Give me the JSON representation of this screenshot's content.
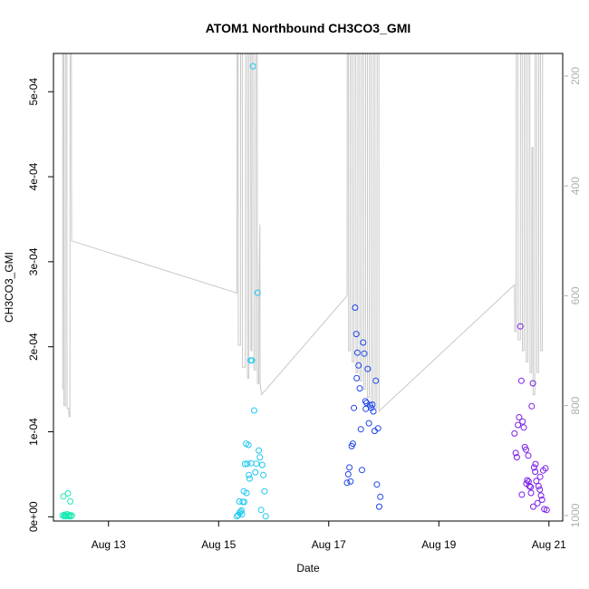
{
  "chart_data": {
    "type": "scatter",
    "title": "ATOM1 Northbound CH3CO3_GMI",
    "xlabel": "Date",
    "ylabel": "CH3CO3_GMI",
    "xlim": [
      "2016-08-12T00:00",
      "2016-08-21T06:00"
    ],
    "ylim": [
      -5e-06,
      0.000545
    ],
    "x_ticks": [
      {
        "value": "2016-08-13",
        "label": "Aug 13"
      },
      {
        "value": "2016-08-15",
        "label": "Aug 15"
      },
      {
        "value": "2016-08-17",
        "label": "Aug 17"
      },
      {
        "value": "2016-08-19",
        "label": "Aug 19"
      },
      {
        "value": "2016-08-21",
        "label": "Aug 21"
      }
    ],
    "y_ticks": [
      {
        "value": 0,
        "label": "0e+00"
      },
      {
        "value": 0.0001,
        "label": "1e-04"
      },
      {
        "value": 0.0002,
        "label": "2e-04"
      },
      {
        "value": 0.0003,
        "label": "3e-04"
      },
      {
        "value": 0.0004,
        "label": "4e-04"
      },
      {
        "value": 0.0005,
        "label": "5e-04"
      }
    ],
    "y2_reversed": true,
    "y2lim": [
      1010,
      159
    ],
    "y2_ticks": [
      {
        "value": 200,
        "label": "200"
      },
      {
        "value": 400,
        "label": "400"
      },
      {
        "value": 600,
        "label": "600"
      },
      {
        "value": 800,
        "label": "800"
      },
      {
        "value": 1000,
        "label": "1000"
      }
    ],
    "grid": false,
    "colors": {
      "pressure_line": "#c8c8c8",
      "axis": "#000000",
      "right_axis": "#b0b0b0"
    },
    "series": [
      {
        "color": "#1de9b6",
        "points": [
          [
            "2016-08-12T04:00",
            1.5e-06
          ],
          [
            "2016-08-12T04:20",
            2.4e-05
          ],
          [
            "2016-08-12T04:40",
            5e-07
          ],
          [
            "2016-08-12T05:00",
            2e-06
          ],
          [
            "2016-08-12T05:20",
            1e-06
          ],
          [
            "2016-08-12T05:40",
            5e-07
          ],
          [
            "2016-08-12T06:00",
            3e-06
          ],
          [
            "2016-08-12T06:20",
            2.75e-05
          ],
          [
            "2016-08-12T06:40",
            1e-06
          ],
          [
            "2016-08-12T07:00",
            2e-06
          ],
          [
            "2016-08-12T07:20",
            1.8e-05
          ],
          [
            "2016-08-12T07:40",
            5e-07
          ],
          [
            "2016-08-12T08:00",
            1.5e-06
          ],
          [
            "2016-08-12T04:50",
            2.5e-06
          ],
          [
            "2016-08-12T06:50",
            5e-07
          ]
        ]
      },
      {
        "color": "#1ec8f0",
        "points": [
          [
            "2016-08-15T08:00",
            5e-07
          ],
          [
            "2016-08-15T08:30",
            2e-06
          ],
          [
            "2016-08-15T09:00",
            1.8e-05
          ],
          [
            "2016-08-15T09:30",
            6e-06
          ],
          [
            "2016-08-15T10:00",
            7.5e-06
          ],
          [
            "2016-08-15T10:30",
            1.75e-05
          ],
          [
            "2016-08-15T11:00",
            3e-05
          ],
          [
            "2016-08-15T11:30",
            6.2e-05
          ],
          [
            "2016-08-15T12:00",
            8.6e-05
          ],
          [
            "2016-08-15T12:30",
            6.25e-05
          ],
          [
            "2016-08-15T13:00",
            8.45e-05
          ],
          [
            "2016-08-15T13:30",
            4.5e-05
          ],
          [
            "2016-08-15T14:00",
            0.000184
          ],
          [
            "2016-08-15T14:30",
            0.000184
          ],
          [
            "2016-08-15T15:00",
            0.00053
          ],
          [
            "2016-08-15T15:30",
            0.000125
          ],
          [
            "2016-08-15T16:00",
            5.25e-05
          ],
          [
            "2016-08-15T16:30",
            6.25e-05
          ],
          [
            "2016-08-15T17:00",
            0.0002635
          ],
          [
            "2016-08-15T17:30",
            7.8e-05
          ],
          [
            "2016-08-15T18:00",
            7e-05
          ],
          [
            "2016-08-15T18:30",
            8e-06
          ],
          [
            "2016-08-15T19:00",
            6.1e-05
          ],
          [
            "2016-08-15T19:30",
            4.9e-05
          ],
          [
            "2016-08-15T20:00",
            3e-05
          ],
          [
            "2016-08-15T20:30",
            5e-07
          ],
          [
            "2016-08-15T09:10",
            4.5e-06
          ],
          [
            "2016-08-15T10:10",
            3e-06
          ],
          [
            "2016-08-15T12:10",
            2.8e-05
          ],
          [
            "2016-08-15T13:10",
            4.9e-05
          ],
          [
            "2016-08-15T14:10",
            6.3e-05
          ],
          [
            "2016-08-15T11:10",
            1.75e-05
          ]
        ]
      },
      {
        "color": "#2046e8",
        "points": [
          [
            "2016-08-17T08:00",
            4e-05
          ],
          [
            "2016-08-17T08:30",
            5e-05
          ],
          [
            "2016-08-17T09:00",
            5.8e-05
          ],
          [
            "2016-08-17T09:30",
            4.15e-05
          ],
          [
            "2016-08-17T10:00",
            8.3e-05
          ],
          [
            "2016-08-17T10:30",
            8.6e-05
          ],
          [
            "2016-08-17T11:00",
            0.000128
          ],
          [
            "2016-08-17T11:30",
            0.000246
          ],
          [
            "2016-08-17T12:00",
            0.000215
          ],
          [
            "2016-08-17T12:30",
            0.000193
          ],
          [
            "2016-08-17T13:00",
            0.000178
          ],
          [
            "2016-08-17T13:30",
            0.000151
          ],
          [
            "2016-08-17T14:00",
            0.000103
          ],
          [
            "2016-08-17T14:30",
            5.5e-05
          ],
          [
            "2016-08-17T15:00",
            0.000205
          ],
          [
            "2016-08-17T15:30",
            0.000192
          ],
          [
            "2016-08-17T16:00",
            0.000136
          ],
          [
            "2016-08-17T16:30",
            0.000134
          ],
          [
            "2016-08-17T17:00",
            0.000174
          ],
          [
            "2016-08-17T17:30",
            0.00011
          ],
          [
            "2016-08-17T18:00",
            0.000131
          ],
          [
            "2016-08-17T18:30",
            0.000128
          ],
          [
            "2016-08-17T19:00",
            0.000132
          ],
          [
            "2016-08-17T19:30",
            0.000124
          ],
          [
            "2016-08-17T20:00",
            0.000101
          ],
          [
            "2016-08-17T20:30",
            0.00016
          ],
          [
            "2016-08-17T21:00",
            3.8e-05
          ],
          [
            "2016-08-17T21:30",
            0.000104
          ],
          [
            "2016-08-17T22:00",
            1.2e-05
          ],
          [
            "2016-08-17T22:30",
            2.35e-05
          ],
          [
            "2016-08-17T12:10",
            0.000163
          ],
          [
            "2016-08-17T16:10",
            0.000127
          ]
        ]
      },
      {
        "color": "#7a1ee8",
        "points": [
          [
            "2016-08-20T09:00",
            9.8e-05
          ],
          [
            "2016-08-20T09:30",
            7.5e-05
          ],
          [
            "2016-08-20T10:00",
            7e-05
          ],
          [
            "2016-08-20T10:30",
            0.000108
          ],
          [
            "2016-08-20T11:00",
            0.000117
          ],
          [
            "2016-08-20T11:30",
            0.000224
          ],
          [
            "2016-08-20T12:00",
            0.00016
          ],
          [
            "2016-08-20T12:30",
            0.000112
          ],
          [
            "2016-08-20T13:00",
            0.000105
          ],
          [
            "2016-08-20T13:30",
            8.2e-05
          ],
          [
            "2016-08-20T14:00",
            7.9e-05
          ],
          [
            "2016-08-20T14:30",
            4.3e-05
          ],
          [
            "2016-08-20T15:00",
            7.2e-05
          ],
          [
            "2016-08-20T15:30",
            3.6e-05
          ],
          [
            "2016-08-20T16:00",
            3.5e-05
          ],
          [
            "2016-08-20T16:30",
            0.00013
          ],
          [
            "2016-08-20T17:00",
            0.000157
          ],
          [
            "2016-08-20T17:30",
            5.8e-05
          ],
          [
            "2016-08-20T18:00",
            5.3e-05
          ],
          [
            "2016-08-20T18:30",
            4.2e-05
          ],
          [
            "2016-08-20T19:00",
            1.6e-05
          ],
          [
            "2016-08-20T19:30",
            3.6e-05
          ],
          [
            "2016-08-20T20:00",
            3.2e-05
          ],
          [
            "2016-08-20T20:30",
            2.5e-05
          ],
          [
            "2016-08-20T21:00",
            2e-05
          ],
          [
            "2016-08-20T21:30",
            5.45e-05
          ],
          [
            "2016-08-20T22:00",
            9e-06
          ],
          [
            "2016-08-20T22:30",
            5.7e-05
          ],
          [
            "2016-08-20T23:00",
            8e-06
          ],
          [
            "2016-08-20T12:10",
            2.6e-05
          ],
          [
            "2016-08-20T14:10",
            3.9e-05
          ],
          [
            "2016-08-20T16:10",
            2.8e-05
          ],
          [
            "2016-08-20T18:10",
            6.2e-05
          ],
          [
            "2016-08-20T20:10",
            4.7e-05
          ],
          [
            "2016-08-20T15:10",
            4.15e-05
          ],
          [
            "2016-08-20T17:10",
            1.2e-05
          ]
        ]
      }
    ],
    "pressure_trace": [
      [
        "2016-08-12T04:00",
        770
      ],
      [
        "2016-08-12T04:05",
        159
      ],
      [
        "2016-08-12T04:30",
        159
      ],
      [
        "2016-08-12T04:35",
        800
      ],
      [
        "2016-08-12T05:10",
        800
      ],
      [
        "2016-08-12T05:15",
        159
      ],
      [
        "2016-08-12T05:50",
        159
      ],
      [
        "2016-08-12T05:55",
        805
      ],
      [
        "2016-08-12T06:40",
        805
      ],
      [
        "2016-08-12T06:45",
        820
      ],
      [
        "2016-08-12T07:10",
        820
      ],
      [
        "2016-08-12T07:15",
        159
      ],
      [
        "2016-08-12T07:50",
        159
      ],
      [
        "2016-08-12T07:55",
        500
      ],
      [
        "2016-08-15T08:00",
        595
      ],
      [
        "2016-08-15T08:05",
        159
      ],
      [
        "2016-08-15T08:30",
        159
      ],
      [
        "2016-08-15T08:35",
        690
      ],
      [
        "2016-08-15T09:30",
        690
      ],
      [
        "2016-08-15T09:35",
        159
      ],
      [
        "2016-08-15T10:20",
        159
      ],
      [
        "2016-08-15T10:25",
        730
      ],
      [
        "2016-08-15T11:40",
        730
      ],
      [
        "2016-08-15T11:45",
        159
      ],
      [
        "2016-08-15T12:30",
        159
      ],
      [
        "2016-08-15T12:35",
        750
      ],
      [
        "2016-08-15T13:10",
        750
      ],
      [
        "2016-08-15T13:15",
        159
      ],
      [
        "2016-08-15T14:00",
        159
      ],
      [
        "2016-08-15T14:05",
        700
      ],
      [
        "2016-08-15T14:30",
        700
      ],
      [
        "2016-08-15T14:35",
        159
      ],
      [
        "2016-08-15T15:20",
        159
      ],
      [
        "2016-08-15T15:25",
        735
      ],
      [
        "2016-08-15T16:10",
        735
      ],
      [
        "2016-08-15T16:15",
        159
      ],
      [
        "2016-08-15T16:50",
        159
      ],
      [
        "2016-08-15T16:55",
        760
      ],
      [
        "2016-08-15T17:30",
        760
      ],
      [
        "2016-08-15T17:35",
        595
      ],
      [
        "2016-08-15T18:00",
        470
      ],
      [
        "2016-08-15T18:05",
        760
      ],
      [
        "2016-08-15T18:45",
        780
      ],
      [
        "2016-08-17T08:00",
        600
      ],
      [
        "2016-08-17T08:05",
        159
      ],
      [
        "2016-08-17T08:35",
        159
      ],
      [
        "2016-08-17T08:40",
        700
      ],
      [
        "2016-08-17T09:20",
        700
      ],
      [
        "2016-08-17T09:25",
        159
      ],
      [
        "2016-08-17T10:10",
        159
      ],
      [
        "2016-08-17T10:15",
        720
      ],
      [
        "2016-08-17T11:00",
        720
      ],
      [
        "2016-08-17T11:05",
        159
      ],
      [
        "2016-08-17T11:50",
        159
      ],
      [
        "2016-08-17T11:55",
        740
      ],
      [
        "2016-08-17T12:40",
        740
      ],
      [
        "2016-08-17T12:45",
        159
      ],
      [
        "2016-08-17T13:30",
        159
      ],
      [
        "2016-08-17T13:35",
        755
      ],
      [
        "2016-08-17T14:20",
        755
      ],
      [
        "2016-08-17T14:25",
        159
      ],
      [
        "2016-08-17T15:10",
        159
      ],
      [
        "2016-08-17T15:15",
        770
      ],
      [
        "2016-08-17T16:00",
        770
      ],
      [
        "2016-08-17T16:05",
        159
      ],
      [
        "2016-08-17T16:50",
        159
      ],
      [
        "2016-08-17T16:55",
        785
      ],
      [
        "2016-08-17T17:40",
        785
      ],
      [
        "2016-08-17T17:45",
        159
      ],
      [
        "2016-08-17T18:30",
        159
      ],
      [
        "2016-08-17T18:35",
        795
      ],
      [
        "2016-08-17T19:20",
        795
      ],
      [
        "2016-08-17T19:25",
        159
      ],
      [
        "2016-08-17T20:10",
        159
      ],
      [
        "2016-08-17T20:15",
        805
      ],
      [
        "2016-08-17T21:00",
        805
      ],
      [
        "2016-08-17T21:05",
        159
      ],
      [
        "2016-08-17T21:50",
        159
      ],
      [
        "2016-08-17T21:55",
        810
      ],
      [
        "2016-08-20T09:00",
        580
      ],
      [
        "2016-08-20T09:05",
        665
      ],
      [
        "2016-08-20T09:40",
        665
      ],
      [
        "2016-08-20T09:45",
        159
      ],
      [
        "2016-08-20T10:30",
        159
      ],
      [
        "2016-08-20T10:35",
        680
      ],
      [
        "2016-08-20T11:30",
        680
      ],
      [
        "2016-08-20T11:35",
        159
      ],
      [
        "2016-08-20T12:20",
        159
      ],
      [
        "2016-08-20T12:25",
        700
      ],
      [
        "2016-08-20T13:10",
        700
      ],
      [
        "2016-08-20T13:15",
        159
      ],
      [
        "2016-08-20T14:00",
        159
      ],
      [
        "2016-08-20T14:05",
        720
      ],
      [
        "2016-08-20T14:50",
        720
      ],
      [
        "2016-08-20T14:55",
        159
      ],
      [
        "2016-08-20T15:40",
        159
      ],
      [
        "2016-08-20T15:45",
        740
      ],
      [
        "2016-08-20T16:30",
        740
      ],
      [
        "2016-08-20T16:35",
        330
      ],
      [
        "2016-08-20T17:00",
        330
      ],
      [
        "2016-08-20T17:05",
        780
      ],
      [
        "2016-08-20T17:50",
        780
      ],
      [
        "2016-08-20T17:55",
        159
      ],
      [
        "2016-08-20T18:40",
        159
      ],
      [
        "2016-08-20T18:45",
        740
      ],
      [
        "2016-08-20T19:30",
        740
      ],
      [
        "2016-08-20T19:35",
        159
      ],
      [
        "2016-08-20T20:20",
        159
      ],
      [
        "2016-08-20T20:25",
        700
      ],
      [
        "2016-08-20T21:10",
        700
      ],
      [
        "2016-08-20T21:15",
        159
      ]
    ]
  }
}
